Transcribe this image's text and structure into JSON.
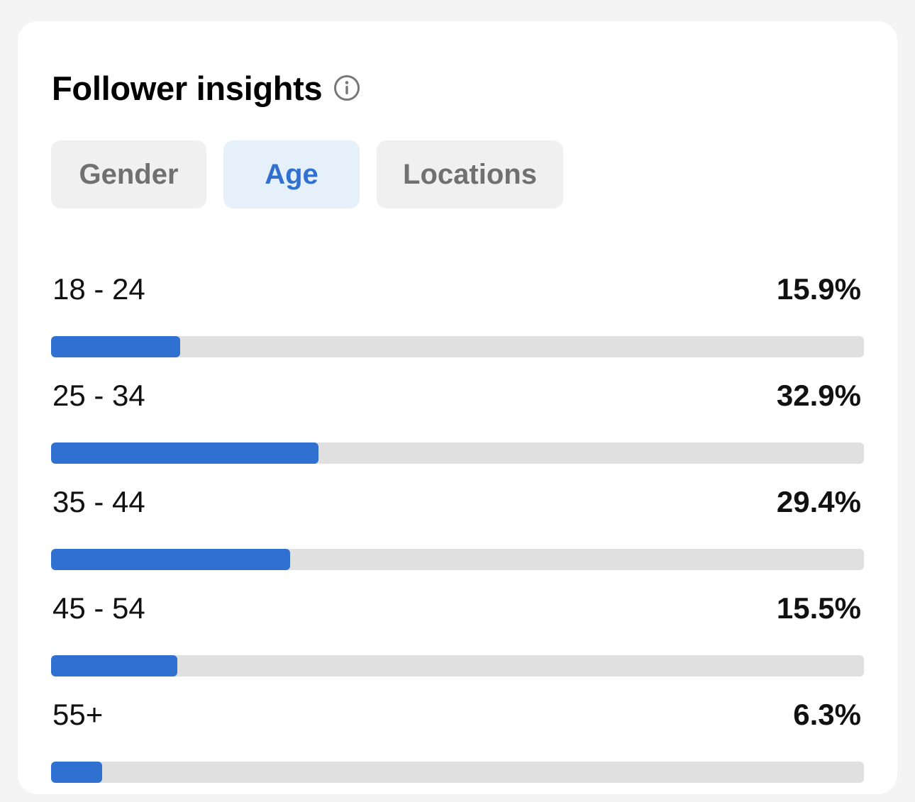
{
  "header": {
    "title": "Follower insights",
    "info_icon": "info-icon"
  },
  "tabs": [
    {
      "label": "Gender",
      "active": false
    },
    {
      "label": "Age",
      "active": true
    },
    {
      "label": "Locations",
      "active": false
    }
  ],
  "age_breakdown": {
    "bar_color": "#3070d0",
    "track_color": "#e0e0e0",
    "rows": [
      {
        "range": "18 - 24",
        "percent_label": "15.9%",
        "fraction": 0.159
      },
      {
        "range": "25 - 34",
        "percent_label": "32.9%",
        "fraction": 0.329
      },
      {
        "range": "35 - 44",
        "percent_label": "29.4%",
        "fraction": 0.294
      },
      {
        "range": "45 - 54",
        "percent_label": "15.5%",
        "fraction": 0.155
      },
      {
        "range": "55+",
        "percent_label": "6.3%",
        "fraction": 0.063
      }
    ]
  },
  "colors": {
    "accent": "#3070d0",
    "active_tab_bg": "#e6f0fa",
    "inactive_tab_bg": "#f0f0f0",
    "page_bg": "#f4f4f4",
    "card_bg": "#ffffff"
  }
}
